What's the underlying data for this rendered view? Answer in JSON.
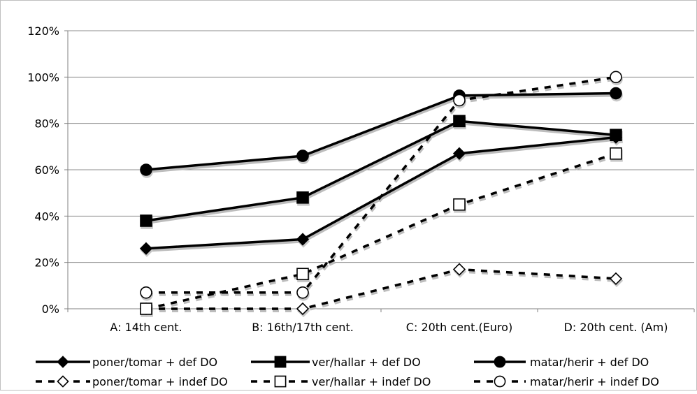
{
  "chart_data": {
    "type": "line",
    "categories": [
      "A: 14th cent.",
      "B: 16th/17th cent.",
      "C: 20th cent.(Euro)",
      "D: 20th cent. (Am)"
    ],
    "ylim": [
      0,
      1.2
    ],
    "yticks": [
      "0%",
      "20%",
      "40%",
      "60%",
      "80%",
      "100%",
      "120%"
    ],
    "grid": true,
    "legend_position": "bottom",
    "series": [
      {
        "name": "poner/tomar + def DO",
        "values": [
          0.26,
          0.3,
          0.67,
          0.74
        ],
        "style": "solid",
        "marker": "diamond",
        "filled": true
      },
      {
        "name": "ver/hallar + def DO",
        "values": [
          0.38,
          0.48,
          0.81,
          0.75
        ],
        "style": "solid",
        "marker": "square",
        "filled": true
      },
      {
        "name": "matar/herir + def DO",
        "values": [
          0.6,
          0.66,
          0.92,
          0.93
        ],
        "style": "solid",
        "marker": "circle",
        "filled": true
      },
      {
        "name": "poner/tomar + indef DO",
        "values": [
          0.0,
          0.0,
          0.17,
          0.13
        ],
        "style": "dashed",
        "marker": "diamond",
        "filled": false
      },
      {
        "name": "ver/hallar + indef DO",
        "values": [
          0.0,
          0.15,
          0.45,
          0.67
        ],
        "style": "dashed",
        "marker": "square",
        "filled": false
      },
      {
        "name": "matar/herir + indef DO",
        "values": [
          0.07,
          0.07,
          0.9,
          1.0
        ],
        "style": "dashed",
        "marker": "circle",
        "filled": false
      }
    ]
  }
}
